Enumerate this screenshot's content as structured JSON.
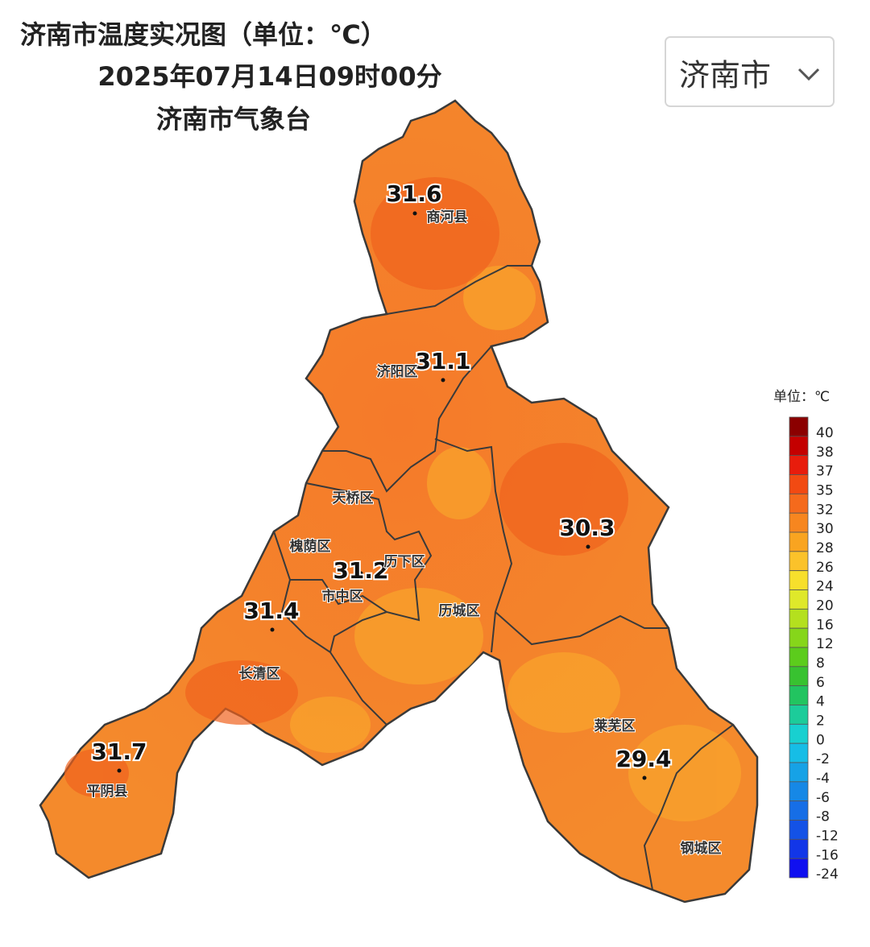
{
  "header": {
    "title": "济南市温度实况图（单位：℃）",
    "time": "2025年07月14日09时00分",
    "source": "济南市气象台"
  },
  "dropdown": {
    "label": "济南市"
  },
  "readings": [
    31.6,
    31.1,
    31.2,
    30.3,
    31.4,
    31.7,
    29.4
  ],
  "districts": [
    "商河县",
    "济阳区",
    "天桥区",
    "槐荫区",
    "历下区",
    "市中区",
    "历城区",
    "长清区",
    "平阴县",
    "莱芜区",
    "钢城区"
  ],
  "legend": {
    "title": "单位：℃",
    "ticks": [
      40,
      38,
      37,
      35,
      32,
      30,
      28,
      26,
      24,
      20,
      16,
      12,
      8,
      6,
      4,
      2,
      0,
      -2,
      -4,
      -6,
      -8,
      -12,
      -16,
      -24
    ],
    "colors": [
      "#8b0000",
      "#c40000",
      "#e81c0c",
      "#f24a12",
      "#f56a1c",
      "#f7861f",
      "#f9a420",
      "#fbc22a",
      "#f7df2c",
      "#dfe82a",
      "#b4e01e",
      "#86d61a",
      "#5ccc1c",
      "#38c230",
      "#22c460",
      "#1ccc9a",
      "#18d0d0",
      "#16bde6",
      "#16a2e6",
      "#1688e6",
      "#166ee6",
      "#1452e6",
      "#1236e8",
      "#1010f0"
    ]
  }
}
